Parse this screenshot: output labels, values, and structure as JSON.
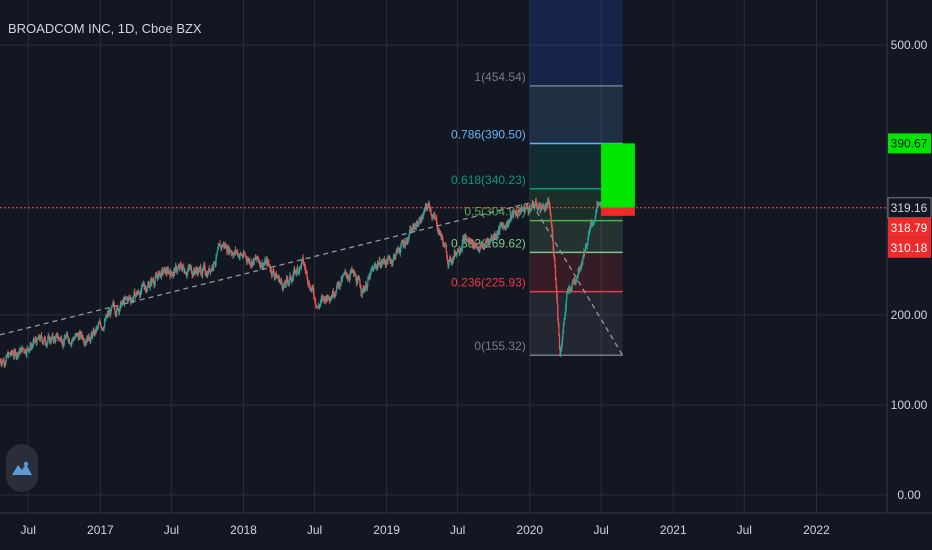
{
  "header": {
    "symbol_title": "BROADCOM INC, 1D, Cboe BZX"
  },
  "colors": {
    "background": "#131722",
    "grid": "#2a2e39",
    "up_candle": "#26a69a",
    "down_candle": "#ef5350",
    "axis_text": "#d1d4dc",
    "current_price_line": "#ef5350",
    "target_box": "#00e600",
    "stop_box": "#ef2a2a",
    "fib_0": "#787b86",
    "fib_0236": "#f23645",
    "fib_0382": "#81c784",
    "fib_05": "#4caf50",
    "fib_0618": "#089981",
    "fib_0786": "#64b5f6",
    "fib_1": "#787b86"
  },
  "chart_data": {
    "type": "candlestick",
    "y_axis": {
      "range": [
        -20,
        550
      ],
      "ticks": [
        {
          "value": 0,
          "label": "0.00"
        },
        {
          "value": 100,
          "label": "100.00"
        },
        {
          "value": 200,
          "label": "200.00"
        },
        {
          "value": 500,
          "label": "500.00"
        }
      ]
    },
    "x_axis": {
      "range": [
        "2016-04-20",
        "2022-06-30"
      ],
      "ticks": [
        {
          "date": "2016-07-01",
          "label": "Jul"
        },
        {
          "date": "2017-01-01",
          "label": "2017"
        },
        {
          "date": "2017-07-01",
          "label": "Jul"
        },
        {
          "date": "2018-01-01",
          "label": "2018"
        },
        {
          "date": "2018-07-01",
          "label": "Jul"
        },
        {
          "date": "2019-01-01",
          "label": "2019"
        },
        {
          "date": "2019-07-01",
          "label": "Jul"
        },
        {
          "date": "2020-01-01",
          "label": "2020"
        },
        {
          "date": "2020-07-01",
          "label": "Jul"
        },
        {
          "date": "2021-01-01",
          "label": "2021"
        },
        {
          "date": "2021-07-01",
          "label": "Jul"
        },
        {
          "date": "2022-01-01",
          "label": "2022"
        }
      ]
    },
    "price_path": [
      {
        "date": "2016-04-20",
        "close": 150
      },
      {
        "date": "2016-06-01",
        "close": 158
      },
      {
        "date": "2016-08-01",
        "close": 172
      },
      {
        "date": "2016-10-15",
        "close": 175
      },
      {
        "date": "2016-12-15",
        "close": 178
      },
      {
        "date": "2017-02-01",
        "close": 205
      },
      {
        "date": "2017-04-01",
        "close": 222
      },
      {
        "date": "2017-06-01",
        "close": 245
      },
      {
        "date": "2017-08-01",
        "close": 252
      },
      {
        "date": "2017-10-01",
        "close": 248
      },
      {
        "date": "2017-11-10",
        "close": 278
      },
      {
        "date": "2018-01-15",
        "close": 262
      },
      {
        "date": "2018-03-01",
        "close": 258
      },
      {
        "date": "2018-04-15",
        "close": 232
      },
      {
        "date": "2018-06-01",
        "close": 258
      },
      {
        "date": "2018-07-10",
        "close": 210
      },
      {
        "date": "2018-09-01",
        "close": 235
      },
      {
        "date": "2018-10-01",
        "close": 248
      },
      {
        "date": "2018-11-01",
        "close": 228
      },
      {
        "date": "2018-12-10",
        "close": 258
      },
      {
        "date": "2019-01-15",
        "close": 262
      },
      {
        "date": "2019-03-01",
        "close": 290
      },
      {
        "date": "2019-04-20",
        "close": 322
      },
      {
        "date": "2019-05-20",
        "close": 288
      },
      {
        "date": "2019-06-10",
        "close": 258
      },
      {
        "date": "2019-07-15",
        "close": 285
      },
      {
        "date": "2019-09-01",
        "close": 275
      },
      {
        "date": "2019-10-15",
        "close": 295
      },
      {
        "date": "2019-12-01",
        "close": 315
      },
      {
        "date": "2020-01-15",
        "close": 322
      },
      {
        "date": "2020-02-20",
        "close": 320
      },
      {
        "date": "2020-03-05",
        "close": 260
      },
      {
        "date": "2020-03-18",
        "close": 158
      },
      {
        "date": "2020-04-05",
        "close": 220
      },
      {
        "date": "2020-05-01",
        "close": 248
      },
      {
        "date": "2020-06-01",
        "close": 290
      },
      {
        "date": "2020-06-20",
        "close": 318
      },
      {
        "date": "2020-07-01",
        "close": 319.16
      }
    ],
    "trendline": {
      "points": [
        {
          "date": "2016-04-20",
          "value": 178
        },
        {
          "date": "2020-01-05",
          "value": 325
        },
        {
          "date": "2020-08-25",
          "value": 155
        }
      ]
    },
    "fibonacci": {
      "start_date": "2020-01-01",
      "end_date": "2020-08-25",
      "levels": [
        {
          "ratio": "1",
          "label": "1(454.54)",
          "value": 454.54,
          "color_key": "fib_1"
        },
        {
          "ratio": "0.786",
          "label": "0.786(390.50)",
          "value": 390.5,
          "color_key": "fib_0786"
        },
        {
          "ratio": "0.618",
          "label": "0.618(340.23)",
          "value": 340.23,
          "color_key": "fib_0618"
        },
        {
          "ratio": "0.5",
          "label": "0.5(304.93)",
          "value": 304.93,
          "color_key": "fib_05"
        },
        {
          "ratio": "0.382",
          "label": "0.382(269.62)",
          "value": 269.62,
          "color_key": "fib_0382"
        },
        {
          "ratio": "0.236",
          "label": "0.236(225.93)",
          "value": 225.93,
          "color_key": "fib_0236"
        },
        {
          "ratio": "0",
          "label": "0(155.32)",
          "value": 155.32,
          "color_key": "fib_0"
        }
      ]
    },
    "position": {
      "start_date": "2020-07-01",
      "end_date": "2020-09-25",
      "target": 390.67,
      "entry": 319.16,
      "stop": 310.18
    },
    "price_labels": [
      {
        "label": "390.67",
        "value": 390.67,
        "bg": "#00e600",
        "fg": "#131722"
      },
      {
        "label": "319.16",
        "value": 319.16,
        "bg": "#131722",
        "fg": "#d1d4dc"
      },
      {
        "label": "318.79",
        "value": 318.79,
        "bg": "#ef2a2a",
        "fg": "#ffffff"
      },
      {
        "label": "310.18",
        "value": 310.18,
        "bg": "#ef2a2a",
        "fg": "#ffffff"
      }
    ],
    "current_price": 319.16
  }
}
